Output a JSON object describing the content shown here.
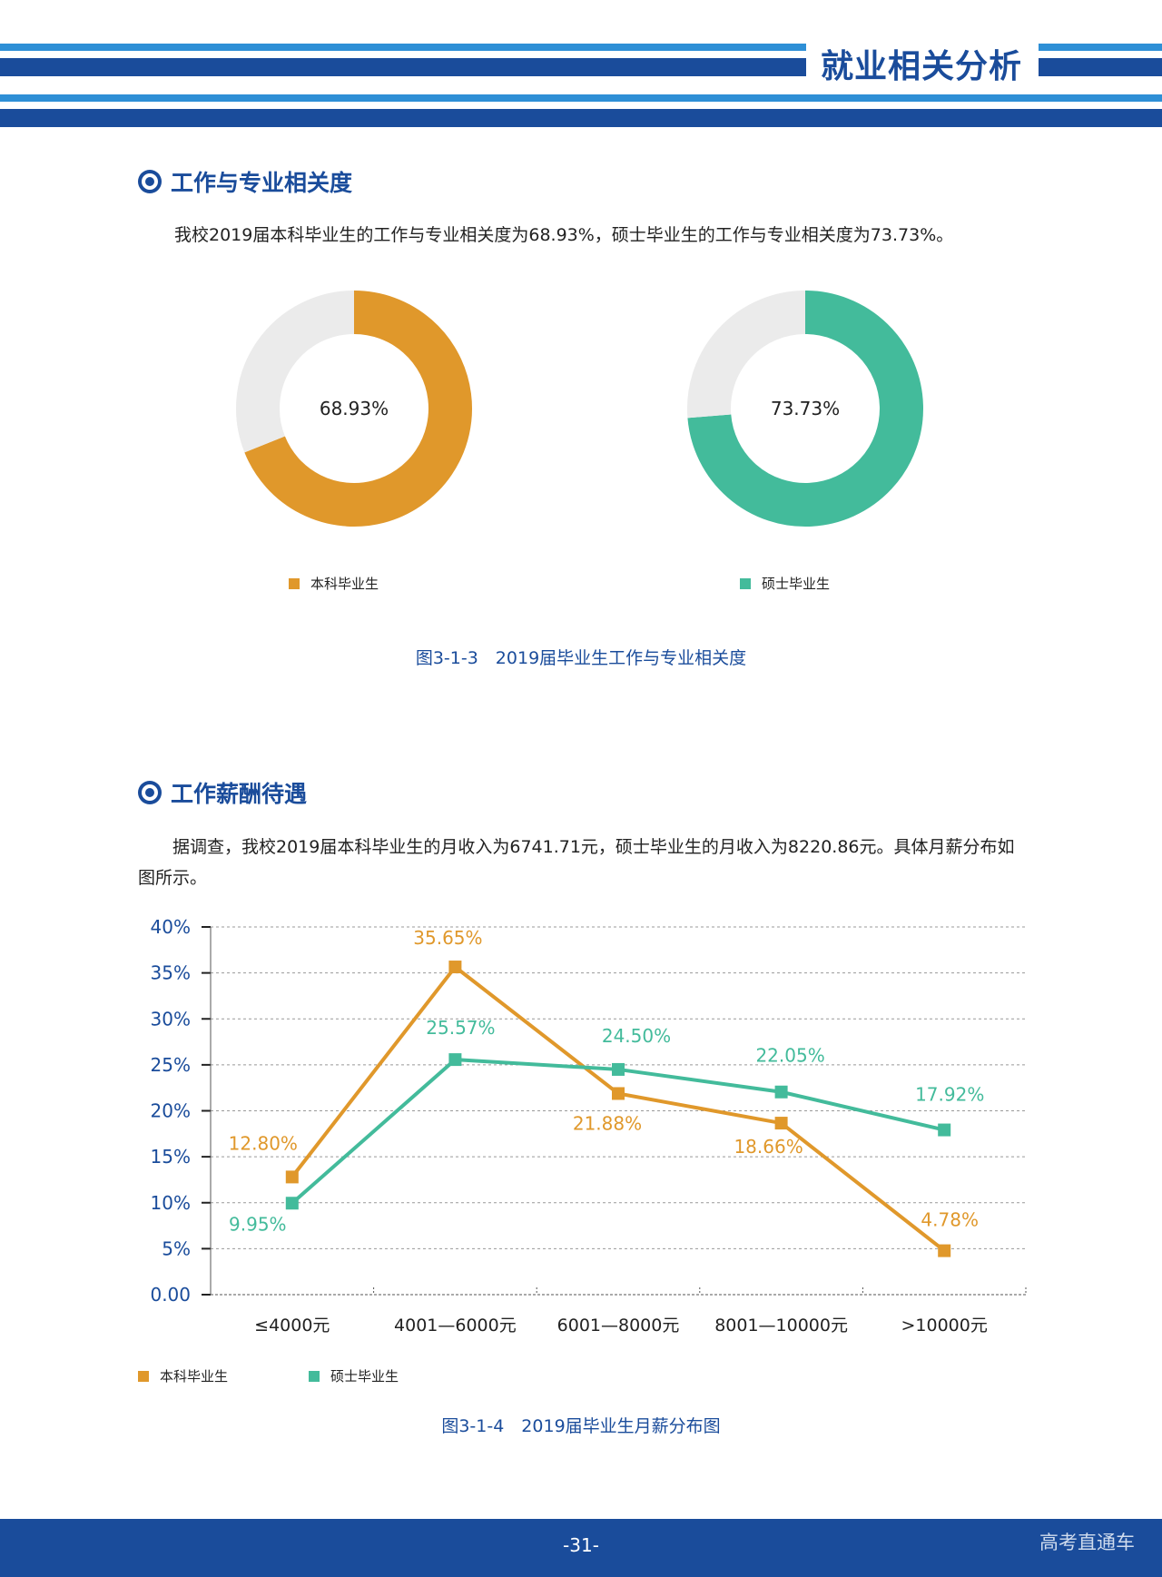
{
  "header": {
    "title": "就业相关分析"
  },
  "section1": {
    "title": "工作与专业相关度",
    "paragraph": "我校2019届本科毕业生的工作与专业相关度为68.93%，硕士毕业生的工作与专业相关度为73.73%。",
    "caption": "图3-1-3　2019届毕业生工作与专业相关度"
  },
  "section2": {
    "title": "工作薪酬待遇",
    "paragraph_line1": "据调查，我校2019届本科毕业生的月收入为6741.71元，硕士毕业生的月收入为8220.86元。具体月薪分布如",
    "paragraph_line2": "图所示。",
    "caption": "图3-1-4　2019届毕业生月薪分布图"
  },
  "chart_data": [
    {
      "type": "pie",
      "subtype": "donut",
      "center_label": "68.93%",
      "legend": "本科毕业生",
      "values": [
        68.93,
        31.07
      ],
      "colors": [
        "#e0982b",
        "#ebebeb"
      ]
    },
    {
      "type": "pie",
      "subtype": "donut",
      "center_label": "73.73%",
      "legend": "硕士毕业生",
      "values": [
        73.73,
        26.27
      ],
      "colors": [
        "#43bb9b",
        "#ebebeb"
      ]
    },
    {
      "type": "line",
      "categories": [
        "≤4000元",
        "4001—6000元",
        "6001—8000元",
        "8001—10000元",
        ">10000元"
      ],
      "yticks": [
        "0.00",
        "5%",
        "10%",
        "15%",
        "20%",
        "25%",
        "30%",
        "35%",
        "40%"
      ],
      "ylim": [
        0,
        40
      ],
      "grid": true,
      "legend_position": "bottom-left",
      "series": [
        {
          "name": "本科毕业生",
          "color": "#e0982b",
          "values": [
            12.8,
            35.65,
            21.88,
            18.66,
            4.78
          ],
          "labels": [
            "12.80%",
            "35.65%",
            "21.88%",
            "18.66%",
            "4.78%"
          ]
        },
        {
          "name": "硕士毕业生",
          "color": "#43bb9b",
          "values": [
            9.95,
            25.57,
            24.5,
            22.05,
            17.92
          ],
          "labels": [
            "9.95%",
            "25.57%",
            "24.50%",
            "22.05%",
            "17.92%"
          ]
        }
      ]
    }
  ],
  "footer": {
    "page_number": "-31-",
    "brand": "高考直通车"
  }
}
